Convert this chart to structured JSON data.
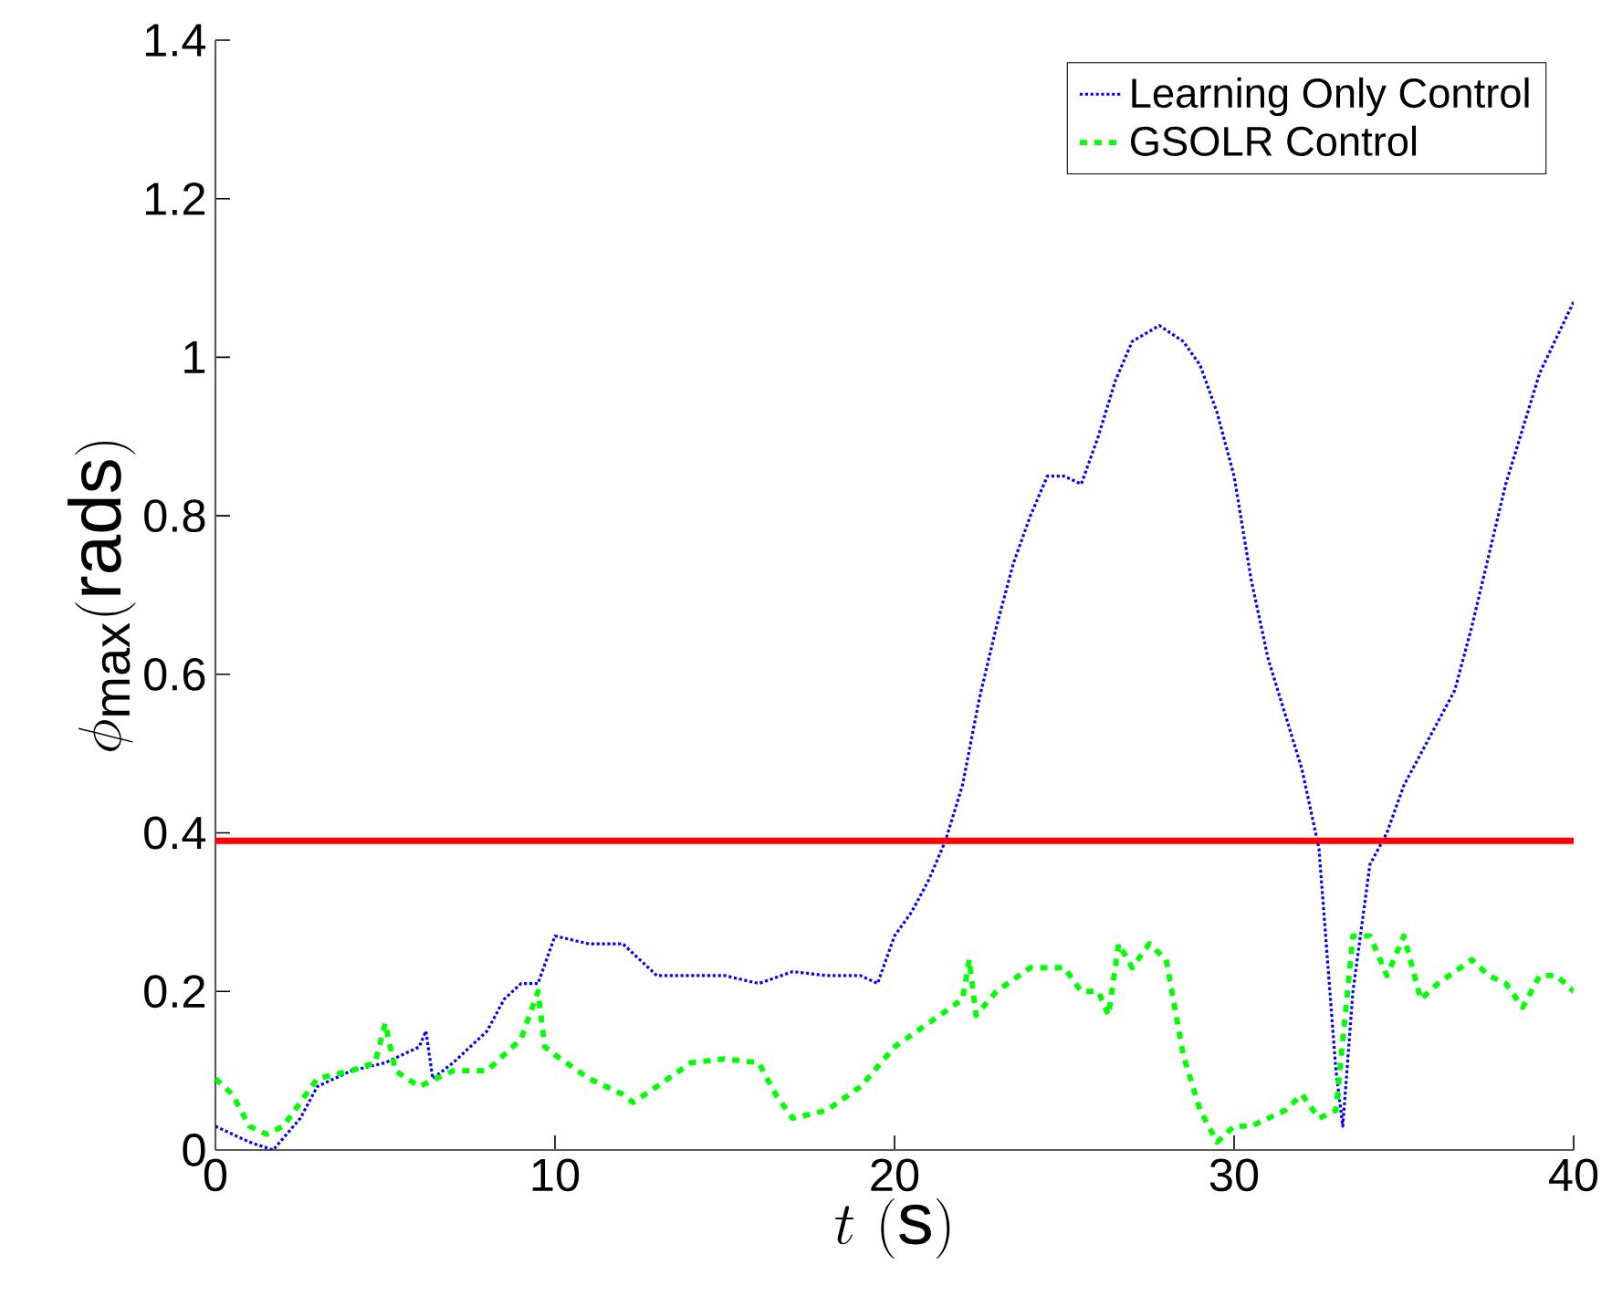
{
  "chart_data": {
    "type": "line",
    "xlabel": "t\\ (\\mathrm{s})",
    "ylabel": "\\phi_{\\max}(\\mathrm{rads})",
    "xlim": [
      0,
      40
    ],
    "ylim": [
      0,
      1.4
    ],
    "xticks": [
      0,
      10,
      20,
      30,
      40
    ],
    "yticks": [
      0,
      0.2,
      0.4,
      0.6,
      0.8,
      1,
      1.2,
      1.4
    ],
    "legend": "top right",
    "grid": false,
    "ref_lines": [
      {
        "axis": "y",
        "value": 0.39,
        "color": "#ff0000",
        "line_style": "solid"
      }
    ],
    "series": [
      {
        "name": "Learning Only Control",
        "color": "#0000ff",
        "line_style": "dotted",
        "x": [
          0,
          1,
          1.7,
          2.5,
          3,
          4,
          5,
          6,
          6.2,
          6.4,
          7,
          8,
          8.5,
          9,
          9.5,
          10,
          11,
          12,
          13,
          14,
          15,
          16,
          17,
          18,
          19,
          19.5,
          20,
          20.5,
          21,
          21.5,
          22,
          22.5,
          23,
          23.5,
          24,
          24.5,
          25,
          25.5,
          26,
          26.5,
          27,
          27.8,
          28.5,
          29,
          29.5,
          30,
          30.5,
          31,
          31.5,
          32,
          32.5,
          33,
          33.2,
          33.5,
          34,
          34.5,
          35,
          36,
          36.5,
          37,
          38,
          39,
          40
        ],
        "values": [
          0.03,
          0.01,
          0.0,
          0.04,
          0.08,
          0.1,
          0.11,
          0.13,
          0.15,
          0.09,
          0.11,
          0.15,
          0.19,
          0.21,
          0.21,
          0.27,
          0.26,
          0.26,
          0.22,
          0.22,
          0.22,
          0.21,
          0.225,
          0.22,
          0.22,
          0.21,
          0.27,
          0.3,
          0.34,
          0.39,
          0.46,
          0.57,
          0.66,
          0.74,
          0.8,
          0.85,
          0.85,
          0.84,
          0.9,
          0.97,
          1.02,
          1.04,
          1.02,
          0.99,
          0.93,
          0.85,
          0.72,
          0.62,
          0.55,
          0.48,
          0.38,
          0.1,
          0.03,
          0.2,
          0.36,
          0.4,
          0.46,
          0.54,
          0.58,
          0.66,
          0.84,
          0.98,
          1.07
        ]
      },
      {
        "name": "GSOLR Control",
        "color": "#00ff00",
        "line_style": "dashed",
        "x": [
          0,
          0.5,
          1,
          1.5,
          2,
          2.5,
          3,
          4,
          4.7,
          5,
          5.3,
          6,
          7,
          8,
          8.5,
          9,
          9.5,
          9.7,
          10,
          11,
          12,
          12.3,
          13,
          14,
          15,
          16,
          16.5,
          17,
          18,
          19,
          20,
          21,
          22,
          22.2,
          22.4,
          23,
          24,
          25,
          25.5,
          26,
          26.3,
          26.6,
          27,
          27.5,
          28,
          28.5,
          29,
          29.5,
          30,
          30.5,
          31,
          31.5,
          32,
          32.5,
          33,
          33.5,
          34,
          34.5,
          35,
          35.5,
          36,
          37,
          37.5,
          38,
          38.5,
          39,
          39.5,
          40
        ],
        "values": [
          0.09,
          0.07,
          0.03,
          0.02,
          0.03,
          0.06,
          0.09,
          0.1,
          0.11,
          0.16,
          0.1,
          0.08,
          0.1,
          0.1,
          0.12,
          0.14,
          0.2,
          0.13,
          0.12,
          0.09,
          0.07,
          0.06,
          0.08,
          0.11,
          0.115,
          0.11,
          0.07,
          0.04,
          0.05,
          0.08,
          0.13,
          0.16,
          0.19,
          0.24,
          0.17,
          0.2,
          0.23,
          0.23,
          0.2,
          0.2,
          0.17,
          0.26,
          0.23,
          0.26,
          0.24,
          0.12,
          0.05,
          0.01,
          0.03,
          0.03,
          0.04,
          0.05,
          0.07,
          0.04,
          0.05,
          0.27,
          0.27,
          0.22,
          0.27,
          0.19,
          0.21,
          0.24,
          0.22,
          0.21,
          0.18,
          0.22,
          0.22,
          0.2
        ]
      }
    ]
  }
}
